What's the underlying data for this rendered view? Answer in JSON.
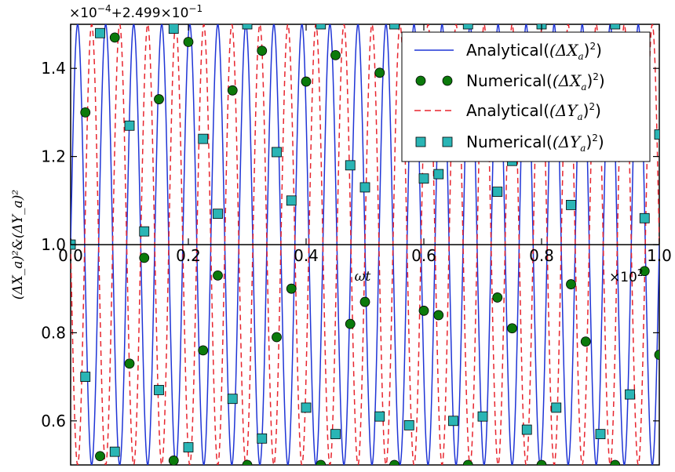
{
  "chart_data": {
    "type": "line",
    "title": "",
    "xlabel": "ωt",
    "ylabel": "(ΔX_a)²&(ΔY_a)²",
    "x_scale_label": "×10²",
    "x_multiplier": "×10",
    "x_multiplier_exp": "2",
    "y_offset_label": "×10⁻⁴+2.499×10⁻¹",
    "y_offset_prefix": "×10",
    "y_offset_exp1": "−4",
    "y_offset_mid": "+2.499×10",
    "y_offset_exp2": "−1",
    "xlim": [
      0.0,
      1.0
    ],
    "ylim": [
      0.5,
      1.5
    ],
    "x_ticks": [
      "0.0",
      "0.2",
      "0.4",
      "0.6",
      "0.8",
      "1.0"
    ],
    "y_ticks": [
      "0.6",
      "0.8",
      "1.0",
      "1.2",
      "1.4"
    ],
    "grid": false,
    "legend_position": "top-right",
    "legend": {
      "s1_prefix": "Analytical(",
      "s1_math": "(ΔX",
      "s1_sub": "a",
      "s1_suffix": ")",
      "s2_prefix": "Numerical(",
      "s2_math": "(ΔX",
      "s2_sub": "a",
      "s2_suffix": ")",
      "s3_prefix": "Analytical(",
      "s3_math": "(ΔY",
      "s3_sub": "a",
      "s3_suffix": ")",
      "s4_prefix": "Numerical(",
      "s4_math": "(ΔY",
      "s4_sub": "a",
      "s4_suffix": ")",
      "sup": "2"
    },
    "series": [
      {
        "name": "Analytical((ΔX_a)²)",
        "style": "solid",
        "color": "#1f35d6",
        "periods": 21,
        "phase": "sin",
        "center": 1.0,
        "amplitude": 0.5
      },
      {
        "name": "Numerical((ΔX_a)²)",
        "style": "circle-markers",
        "color": "#0b7a0b",
        "x": [
          0.0,
          0.025,
          0.05,
          0.075,
          0.1,
          0.125,
          0.15,
          0.175,
          0.2,
          0.225,
          0.25,
          0.275,
          0.3,
          0.325,
          0.35,
          0.375,
          0.4,
          0.425,
          0.45,
          0.475,
          0.5,
          0.525,
          0.55,
          0.575,
          0.6,
          0.625,
          0.65,
          0.675,
          0.7,
          0.725,
          0.75,
          0.775,
          0.8,
          0.825,
          0.85,
          0.875,
          0.9,
          0.925,
          0.95,
          0.975,
          1.0
        ],
        "y": [
          1.0,
          1.3,
          0.52,
          1.47,
          0.73,
          0.97,
          1.33,
          0.51,
          1.46,
          0.76,
          0.93,
          1.35,
          0.5,
          1.44,
          0.79,
          0.9,
          1.37,
          0.5,
          1.43,
          0.82,
          0.87,
          1.39,
          0.5,
          1.41,
          0.85,
          0.84,
          1.4,
          0.5,
          1.38,
          0.88,
          0.81,
          1.42,
          0.5,
          1.36,
          0.91,
          0.78,
          1.44,
          0.5,
          1.34,
          0.94,
          0.75
        ]
      },
      {
        "name": "Analytical((ΔY_a)²)",
        "style": "dashed",
        "color": "#e8252e",
        "periods": 21,
        "phase": "-sin",
        "center": 1.0,
        "amplitude": 0.5
      },
      {
        "name": "Numerical((ΔY_a)²)",
        "style": "square-markers",
        "color": "#2ab5b5",
        "x": [
          0.0,
          0.025,
          0.05,
          0.075,
          0.1,
          0.125,
          0.15,
          0.175,
          0.2,
          0.225,
          0.25,
          0.275,
          0.3,
          0.325,
          0.35,
          0.375,
          0.4,
          0.425,
          0.45,
          0.475,
          0.5,
          0.525,
          0.55,
          0.575,
          0.6,
          0.625,
          0.65,
          0.675,
          0.7,
          0.725,
          0.75,
          0.775,
          0.8,
          0.825,
          0.85,
          0.875,
          0.9,
          0.925,
          0.95,
          0.975,
          1.0
        ],
        "y": [
          1.0,
          0.7,
          1.48,
          0.53,
          1.27,
          1.03,
          0.67,
          1.49,
          0.54,
          1.24,
          1.07,
          0.65,
          1.5,
          0.56,
          1.21,
          1.1,
          0.63,
          1.5,
          0.57,
          1.18,
          1.13,
          0.61,
          1.5,
          0.59,
          1.15,
          1.16,
          0.6,
          1.5,
          0.61,
          1.12,
          1.19,
          0.58,
          1.5,
          0.63,
          1.09,
          1.22,
          0.57,
          1.5,
          0.66,
          1.06,
          1.25
        ]
      }
    ]
  }
}
